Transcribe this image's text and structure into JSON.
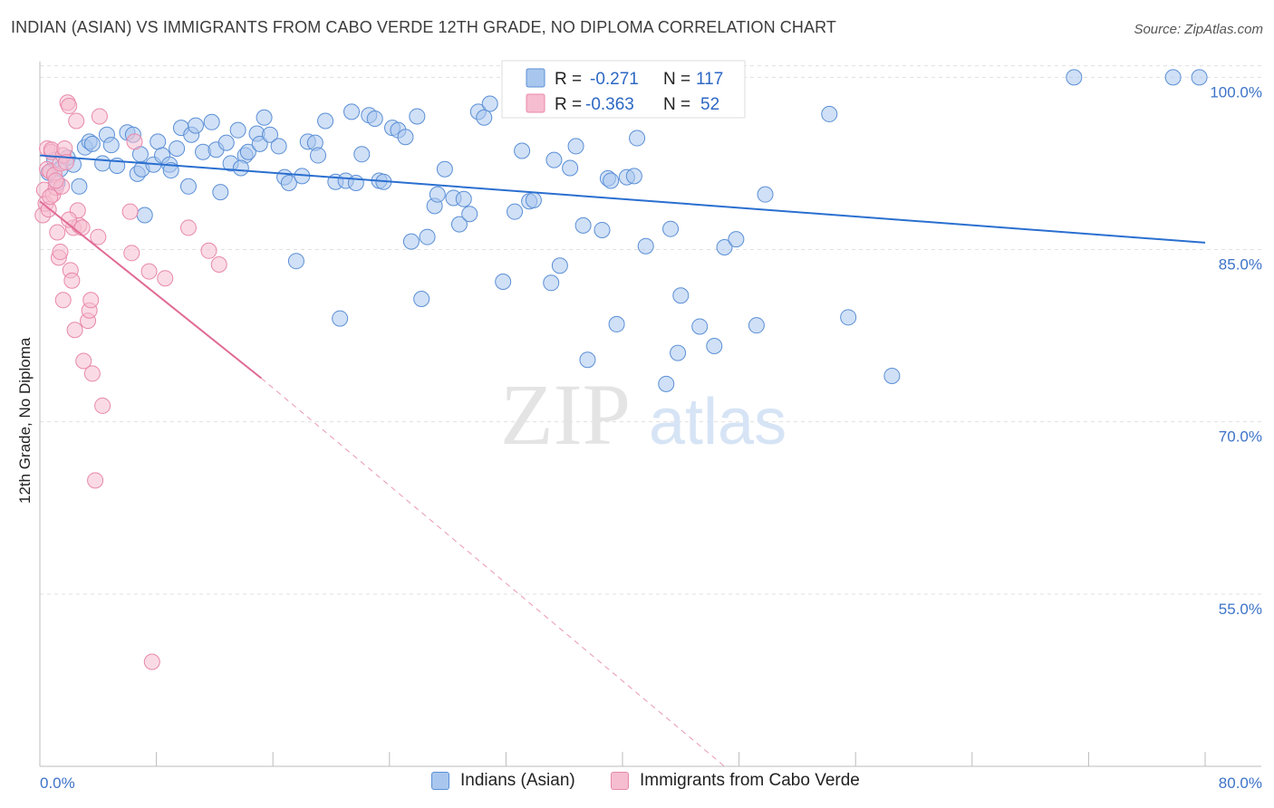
{
  "title": "INDIAN (ASIAN) VS IMMIGRANTS FROM CABO VERDE 12TH GRADE, NO DIPLOMA CORRELATION CHART",
  "source": "Source: ZipAtlas.com",
  "watermark": {
    "zip": "ZIP",
    "atlas": "atlas"
  },
  "legend": {
    "rows": [
      {
        "r_label": "R =",
        "r_value": "-0.271",
        "n_label": "N =",
        "n_value": "117"
      },
      {
        "r_label": "R =",
        "r_value": "-0.363",
        "n_label": "N =",
        "n_value": "52"
      }
    ]
  },
  "bottom_legend": [
    "Indians (Asian)",
    "Immigrants from Cabo Verde"
  ],
  "colors": {
    "blue_fill": "#a9c7ee",
    "blue_stroke": "#5b8fd6",
    "blue_line": "#2a6fd0",
    "pink_fill": "#f6bdd0",
    "pink_stroke": "#e888aa",
    "pink_line": "#e06b95",
    "tick_text": "#3d73c8",
    "grid": "#e0e0e0"
  },
  "chart_data": {
    "type": "scatter",
    "title": "INDIAN (ASIAN) VS IMMIGRANTS FROM CABO VERDE 12TH GRADE, NO DIPLOMA CORRELATION CHART",
    "xlabel": "",
    "ylabel": "12th Grade, No Diploma",
    "xlim": [
      0,
      80
    ],
    "ylim": [
      40,
      102
    ],
    "x_tick_labels": [
      "0.0%",
      "80.0%"
    ],
    "y_ticks": [
      100,
      85,
      70,
      55
    ],
    "y_tick_labels": [
      "100.0%",
      "85.0%",
      "70.0%",
      "55.0%"
    ],
    "grid": true,
    "legend_position": "top-center",
    "series": [
      {
        "name": "Indians (Asian)",
        "color": "#a9c7ee",
        "r": -0.271,
        "n": 117,
        "trend": {
          "x": [
            0,
            80
          ],
          "y": [
            93.2,
            85.6
          ]
        },
        "points": [
          [
            0.6,
            91.7
          ],
          [
            1.0,
            92.8
          ],
          [
            1.4,
            92.0
          ],
          [
            1.9,
            93.0
          ],
          [
            2.7,
            90.5
          ],
          [
            3.1,
            93.9
          ],
          [
            3.4,
            94.4
          ],
          [
            3.6,
            94.2
          ],
          [
            4.3,
            92.5
          ],
          [
            4.6,
            95.0
          ],
          [
            4.9,
            94.1
          ],
          [
            5.3,
            92.3
          ],
          [
            6.0,
            95.2
          ],
          [
            6.4,
            95.0
          ],
          [
            6.7,
            91.6
          ],
          [
            7.0,
            92.0
          ],
          [
            7.2,
            88.0
          ],
          [
            7.8,
            92.4
          ],
          [
            8.1,
            94.4
          ],
          [
            8.4,
            93.2
          ],
          [
            8.9,
            92.4
          ],
          [
            9.4,
            93.8
          ],
          [
            9.7,
            95.6
          ],
          [
            10.2,
            90.5
          ],
          [
            10.4,
            95.0
          ],
          [
            10.7,
            95.8
          ],
          [
            11.2,
            93.5
          ],
          [
            11.8,
            96.1
          ],
          [
            12.1,
            93.7
          ],
          [
            12.4,
            90.0
          ],
          [
            12.8,
            94.3
          ],
          [
            13.1,
            92.5
          ],
          [
            13.6,
            95.4
          ],
          [
            14.1,
            93.2
          ],
          [
            14.3,
            93.5
          ],
          [
            14.9,
            95.1
          ],
          [
            15.1,
            94.2
          ],
          [
            15.4,
            96.5
          ],
          [
            15.8,
            95.0
          ],
          [
            16.4,
            94.0
          ],
          [
            16.8,
            91.3
          ],
          [
            17.1,
            90.8
          ],
          [
            17.6,
            84.0
          ],
          [
            18.0,
            91.4
          ],
          [
            18.4,
            94.4
          ],
          [
            18.9,
            94.3
          ],
          [
            19.1,
            93.2
          ],
          [
            19.6,
            96.2
          ],
          [
            20.3,
            90.9
          ],
          [
            20.6,
            79.0
          ],
          [
            21.0,
            91.0
          ],
          [
            21.4,
            97.0
          ],
          [
            21.7,
            90.8
          ],
          [
            22.1,
            93.3
          ],
          [
            22.6,
            96.7
          ],
          [
            23.0,
            96.4
          ],
          [
            23.3,
            91.0
          ],
          [
            23.6,
            90.9
          ],
          [
            24.2,
            95.6
          ],
          [
            24.6,
            95.4
          ],
          [
            25.1,
            94.8
          ],
          [
            25.5,
            85.7
          ],
          [
            25.9,
            96.6
          ],
          [
            26.2,
            80.7
          ],
          [
            26.6,
            86.1
          ],
          [
            27.1,
            88.8
          ],
          [
            27.3,
            89.8
          ],
          [
            27.8,
            92.0
          ],
          [
            28.4,
            89.5
          ],
          [
            28.8,
            87.2
          ],
          [
            29.1,
            89.4
          ],
          [
            29.5,
            88.1
          ],
          [
            30.1,
            97.0
          ],
          [
            30.5,
            96.5
          ],
          [
            30.9,
            97.7
          ],
          [
            31.8,
            82.2
          ],
          [
            32.3,
            100.0
          ],
          [
            32.6,
            88.3
          ],
          [
            33.1,
            93.6
          ],
          [
            33.6,
            89.2
          ],
          [
            33.9,
            89.3
          ],
          [
            35.1,
            82.1
          ],
          [
            35.3,
            92.8
          ],
          [
            35.7,
            83.6
          ],
          [
            36.4,
            92.1
          ],
          [
            36.8,
            94.0
          ],
          [
            37.3,
            87.1
          ],
          [
            37.6,
            75.4
          ],
          [
            38.6,
            86.7
          ],
          [
            39.0,
            91.2
          ],
          [
            39.2,
            91.0
          ],
          [
            39.6,
            78.5
          ],
          [
            40.3,
            91.3
          ],
          [
            40.8,
            91.4
          ],
          [
            41.0,
            94.7
          ],
          [
            41.6,
            85.3
          ],
          [
            43.0,
            73.3
          ],
          [
            43.3,
            86.8
          ],
          [
            43.8,
            76.0
          ],
          [
            44.0,
            81.0
          ],
          [
            45.3,
            78.3
          ],
          [
            46.3,
            76.6
          ],
          [
            47.0,
            85.2
          ],
          [
            47.8,
            85.9
          ],
          [
            49.2,
            78.4
          ],
          [
            49.8,
            89.8
          ],
          [
            54.2,
            96.8
          ],
          [
            55.5,
            79.1
          ],
          [
            58.5,
            74.0
          ],
          [
            71.0,
            100.0
          ],
          [
            77.8,
            100.0
          ],
          [
            79.6,
            100.0
          ],
          [
            1.2,
            90.8
          ],
          [
            2.3,
            92.4
          ],
          [
            13.8,
            92.1
          ],
          [
            6.9,
            93.3
          ],
          [
            9.0,
            91.9
          ]
        ]
      },
      {
        "name": "Immigrants from Cabo Verde",
        "color": "#f6bdd0",
        "r": -0.363,
        "n": 52,
        "trend_solid": {
          "x": [
            0,
            15.2
          ],
          "y": [
            89.2,
            73.8
          ]
        },
        "trend_dashed": {
          "x": [
            15.2,
            47.0
          ],
          "y": [
            73.8,
            40.0
          ]
        },
        "points": [
          [
            0.2,
            88.0
          ],
          [
            0.3,
            90.2
          ],
          [
            0.4,
            89.0
          ],
          [
            0.5,
            92.0
          ],
          [
            0.5,
            93.8
          ],
          [
            0.6,
            88.5
          ],
          [
            0.7,
            91.8
          ],
          [
            0.8,
            93.5
          ],
          [
            0.8,
            93.7
          ],
          [
            0.9,
            89.8
          ],
          [
            1.0,
            91.5
          ],
          [
            1.1,
            90.4
          ],
          [
            1.2,
            86.5
          ],
          [
            1.3,
            84.3
          ],
          [
            1.4,
            84.8
          ],
          [
            1.4,
            92.5
          ],
          [
            1.5,
            90.5
          ],
          [
            1.6,
            80.6
          ],
          [
            1.6,
            93.2
          ],
          [
            1.7,
            93.8
          ],
          [
            1.8,
            92.6
          ],
          [
            1.9,
            97.8
          ],
          [
            2.0,
            97.5
          ],
          [
            2.1,
            83.2
          ],
          [
            2.2,
            82.3
          ],
          [
            2.3,
            86.9
          ],
          [
            2.4,
            78.0
          ],
          [
            2.5,
            96.2
          ],
          [
            2.6,
            88.4
          ],
          [
            2.7,
            87.1
          ],
          [
            2.9,
            86.9
          ],
          [
            3.0,
            75.3
          ],
          [
            3.3,
            78.8
          ],
          [
            3.4,
            79.7
          ],
          [
            3.5,
            80.6
          ],
          [
            3.6,
            74.2
          ],
          [
            3.8,
            64.9
          ],
          [
            4.0,
            86.1
          ],
          [
            4.1,
            96.6
          ],
          [
            4.3,
            71.4
          ],
          [
            6.2,
            88.3
          ],
          [
            6.3,
            84.7
          ],
          [
            6.5,
            94.4
          ],
          [
            7.5,
            83.1
          ],
          [
            7.7,
            49.1
          ],
          [
            8.6,
            82.5
          ],
          [
            10.2,
            86.9
          ],
          [
            11.6,
            84.9
          ],
          [
            12.3,
            83.7
          ],
          [
            0.7,
            89.6
          ],
          [
            1.1,
            91.0
          ],
          [
            2.0,
            87.6
          ]
        ]
      }
    ]
  }
}
